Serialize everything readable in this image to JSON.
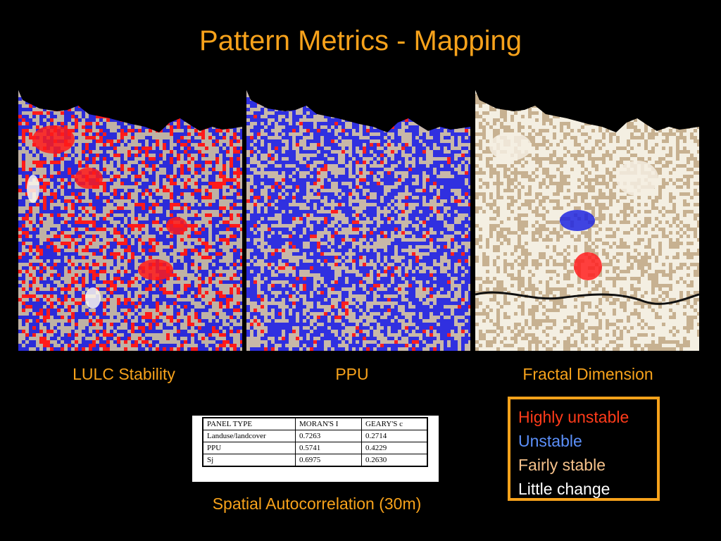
{
  "title": "Pattern Metrics - Mapping",
  "maps": [
    {
      "label": "LULC Stability",
      "palette": {
        "base": "#2b2bd9",
        "fill": "#bfb2a4",
        "accent": "#ff1a1a",
        "highlight": "#fbf7ec"
      }
    },
    {
      "label": "PPU",
      "palette": {
        "base": "#3030e0",
        "fill": "#c8b8a8",
        "accent": "#ff2020",
        "highlight": "#f8f3ea"
      }
    },
    {
      "label": "Fractal Dimension",
      "palette": {
        "base": "#c7b191",
        "fill": "#f4efe2",
        "accent": "#1f26e0",
        "highlight": "#ff2020"
      }
    }
  ],
  "table": {
    "headers": [
      "PANEL TYPE",
      "MORAN'S I",
      "GEARY'S c"
    ],
    "rows": [
      [
        "Landuse/landcover",
        "0.7263",
        "0.2714"
      ],
      [
        "PPU",
        "0.5741",
        "0.4229"
      ],
      [
        "Sj",
        "0.6975",
        "0.2630"
      ]
    ]
  },
  "caption": "Spatial Autocorrelation (30m)",
  "legend": {
    "items": [
      {
        "label": "Highly unstable",
        "color": "#ff3b1a"
      },
      {
        "label": "Unstable",
        "color": "#5b8ff9"
      },
      {
        "label": "Fairly stable",
        "color": "#f5c18a"
      },
      {
        "label": "Little change",
        "color": "#ffffff"
      }
    ],
    "border_color": "#f7a21b"
  },
  "colors": {
    "accent_text": "#f7a21b",
    "background": "#000000"
  }
}
